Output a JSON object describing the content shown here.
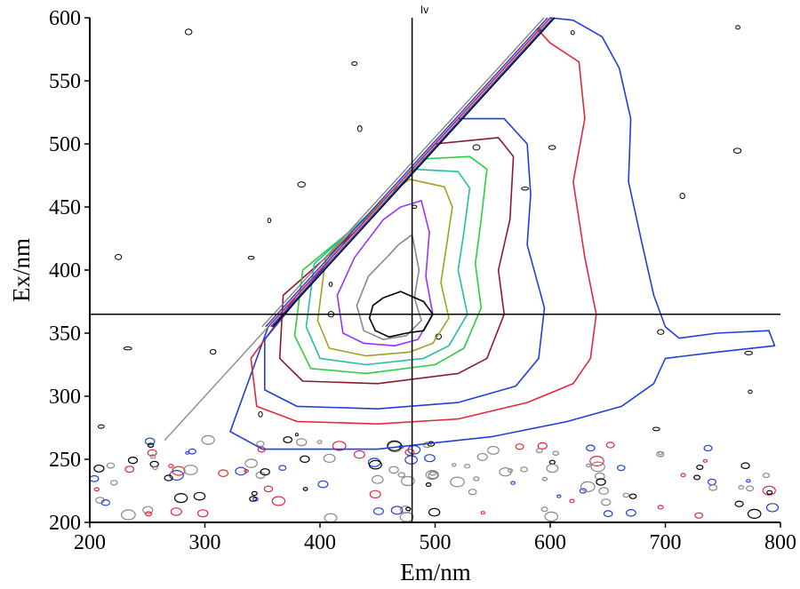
{
  "chart_data": {
    "type": "contour",
    "title": "",
    "xlabel": "Em/nm",
    "ylabel": "Ex/nm",
    "xlim": [
      200,
      800
    ],
    "ylim": [
      200,
      600
    ],
    "xticks": [
      200,
      300,
      400,
      500,
      600,
      700,
      800
    ],
    "yticks": [
      200,
      250,
      300,
      350,
      400,
      450,
      500,
      550,
      600
    ],
    "grid": false,
    "legend": "none",
    "crosshair": {
      "x": 480,
      "y": 365,
      "label": "Iv"
    },
    "peak": {
      "em": 470,
      "ex": 365
    },
    "rayleigh_scatter_line": {
      "from": [
        355,
        355
      ],
      "to": [
        600,
        600
      ]
    },
    "contour_levels": [
      {
        "color": "#1f3fd8",
        "points": [
          [
            355,
            355
          ],
          [
            600,
            600
          ],
          [
            620,
            598
          ],
          [
            645,
            585
          ],
          [
            660,
            560
          ],
          [
            670,
            520
          ],
          [
            668,
            470
          ],
          [
            680,
            420
          ],
          [
            690,
            380
          ],
          [
            700,
            355
          ],
          [
            712,
            346
          ],
          [
            745,
            350
          ],
          [
            790,
            352
          ],
          [
            795,
            340
          ],
          [
            745,
            335
          ],
          [
            700,
            330
          ],
          [
            690,
            310
          ],
          [
            662,
            292
          ],
          [
            615,
            280
          ],
          [
            550,
            268
          ],
          [
            450,
            258
          ],
          [
            350,
            258
          ],
          [
            322,
            272
          ]
        ]
      },
      {
        "color": "#e0283c",
        "points": [
          [
            380,
            380
          ],
          [
            590,
            590
          ],
          [
            600,
            580
          ],
          [
            625,
            565
          ],
          [
            630,
            520
          ],
          [
            620,
            470
          ],
          [
            630,
            410
          ],
          [
            640,
            365
          ],
          [
            635,
            330
          ],
          [
            620,
            310
          ],
          [
            580,
            295
          ],
          [
            520,
            282
          ],
          [
            450,
            278
          ],
          [
            380,
            280
          ],
          [
            345,
            292
          ],
          [
            340,
            330
          ]
        ]
      },
      {
        "color": "#1f3fd8",
        "points": [
          [
            410,
            410
          ],
          [
            520,
            520
          ],
          [
            560,
            520
          ],
          [
            580,
            500
          ],
          [
            583,
            460
          ],
          [
            580,
            420
          ],
          [
            595,
            370
          ],
          [
            590,
            330
          ],
          [
            570,
            308
          ],
          [
            520,
            295
          ],
          [
            450,
            290
          ],
          [
            380,
            292
          ],
          [
            352,
            305
          ],
          [
            352,
            345
          ]
        ]
      },
      {
        "color": "#8b1a2e",
        "points": [
          [
            430,
            430
          ],
          [
            500,
            500
          ],
          [
            555,
            505
          ],
          [
            568,
            490
          ],
          [
            565,
            440
          ],
          [
            555,
            400
          ],
          [
            560,
            365
          ],
          [
            545,
            330
          ],
          [
            520,
            318
          ],
          [
            450,
            310
          ],
          [
            385,
            312
          ],
          [
            365,
            330
          ],
          [
            368,
            380
          ]
        ]
      },
      {
        "color": "#2ecc40",
        "points": [
          [
            445,
            445
          ],
          [
            488,
            488
          ],
          [
            530,
            490
          ],
          [
            545,
            480
          ],
          [
            540,
            440
          ],
          [
            535,
            405
          ],
          [
            540,
            370
          ],
          [
            525,
            338
          ],
          [
            500,
            325
          ],
          [
            440,
            318
          ],
          [
            392,
            322
          ],
          [
            378,
            348
          ],
          [
            385,
            400
          ]
        ]
      },
      {
        "color": "#22bfa0",
        "points": [
          [
            455,
            455
          ],
          [
            480,
            480
          ],
          [
            520,
            478
          ],
          [
            530,
            465
          ],
          [
            525,
            430
          ],
          [
            520,
            400
          ],
          [
            528,
            365
          ],
          [
            512,
            340
          ],
          [
            490,
            330
          ],
          [
            440,
            325
          ],
          [
            400,
            330
          ],
          [
            388,
            355
          ],
          [
            395,
            405
          ]
        ]
      },
      {
        "color": "#a3a020",
        "points": [
          [
            462,
            462
          ],
          [
            478,
            472
          ],
          [
            508,
            466
          ],
          [
            515,
            450
          ],
          [
            510,
            420
          ],
          [
            505,
            390
          ],
          [
            512,
            362
          ],
          [
            498,
            342
          ],
          [
            478,
            335
          ],
          [
            440,
            332
          ],
          [
            408,
            338
          ],
          [
            398,
            360
          ],
          [
            405,
            410
          ]
        ]
      },
      {
        "color": "#9b30ff",
        "points": [
          [
            470,
            450
          ],
          [
            488,
            455
          ],
          [
            495,
            430
          ],
          [
            492,
            395
          ],
          [
            498,
            365
          ],
          [
            485,
            345
          ],
          [
            465,
            340
          ],
          [
            438,
            342
          ],
          [
            420,
            350
          ],
          [
            415,
            380
          ],
          [
            430,
            410
          ],
          [
            455,
            440
          ]
        ]
      },
      {
        "color": "#888888",
        "points": [
          [
            468,
            420
          ],
          [
            480,
            428
          ],
          [
            486,
            400
          ],
          [
            482,
            378
          ],
          [
            488,
            360
          ],
          [
            475,
            348
          ],
          [
            455,
            345
          ],
          [
            438,
            352
          ],
          [
            432,
            372
          ],
          [
            442,
            395
          ],
          [
            460,
            412
          ]
        ]
      },
      {
        "color": "#000000",
        "points": [
          [
            455,
            378
          ],
          [
            470,
            383
          ],
          [
            490,
            375
          ],
          [
            498,
            365
          ],
          [
            490,
            352
          ],
          [
            475,
            350
          ],
          [
            460,
            347
          ],
          [
            448,
            352
          ],
          [
            443,
            362
          ],
          [
            446,
            372
          ]
        ]
      }
    ]
  }
}
